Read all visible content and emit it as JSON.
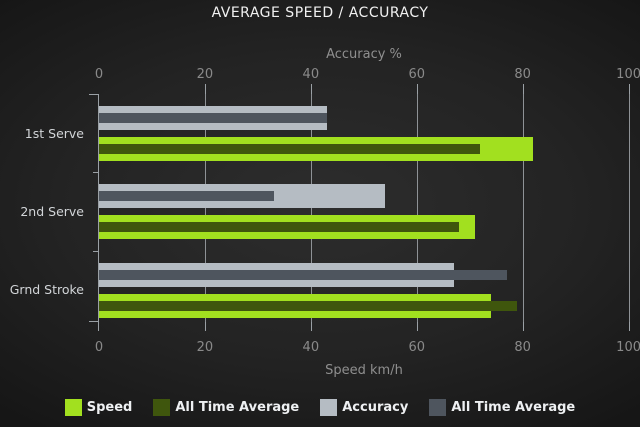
{
  "title": "AVERAGE SPEED / ACCURACY",
  "chart_data": {
    "type": "bar",
    "orientation": "horizontal",
    "title": "AVERAGE SPEED / ACCURACY",
    "categories": [
      "1st Serve",
      "2nd Serve",
      "Grnd Stroke"
    ],
    "series": [
      {
        "name": "Speed",
        "role": "speed-current",
        "color": "#a2e01f",
        "values": [
          82,
          71,
          74
        ]
      },
      {
        "name": "All Time Average",
        "role": "speed-alltime",
        "color": "#3f560d",
        "values": [
          72,
          68,
          79
        ]
      },
      {
        "name": "Accuracy",
        "role": "accuracy-current",
        "color": "#b5bcc3",
        "values": [
          43,
          54,
          67
        ]
      },
      {
        "name": "All Time Average",
        "role": "accuracy-alltime",
        "color": "#4e555e",
        "values": [
          43,
          33,
          77
        ]
      }
    ],
    "top_axis": {
      "label": "Accuracy %",
      "ticks": [
        0,
        20,
        40,
        60,
        80,
        100
      ],
      "range": [
        0,
        100
      ]
    },
    "bottom_axis": {
      "label": "Speed km/h",
      "ticks": [
        0,
        20,
        40,
        60,
        80,
        100
      ],
      "range": [
        0,
        100
      ]
    },
    "grid": true,
    "legend_position": "bottom"
  },
  "legend": [
    {
      "label": "Speed",
      "color": "#a2e01f"
    },
    {
      "label": "All Time Average",
      "color": "#3f560d"
    },
    {
      "label": "Accuracy",
      "color": "#b5bcc3"
    },
    {
      "label": "All Time Average",
      "color": "#4e555e"
    }
  ]
}
